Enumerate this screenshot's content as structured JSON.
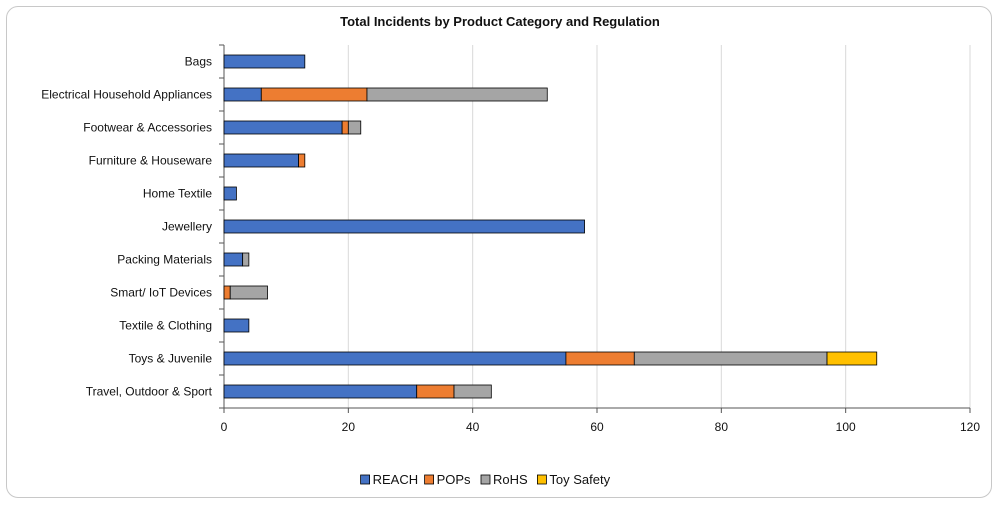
{
  "chart_data": {
    "type": "bar",
    "orientation": "horizontal",
    "stacked": true,
    "title": "Total Incidents by Product Category and Regulation",
    "xlabel": "",
    "ylabel": "",
    "xlim": [
      0,
      120
    ],
    "x_ticks": [
      "0",
      "20",
      "40",
      "60",
      "80",
      "100",
      "120"
    ],
    "grid": "vertical",
    "legend_position": "bottom",
    "categories": [
      "Bags",
      "Electrical Household Appliances",
      "Footwear & Accessories",
      "Furniture & Houseware",
      "Home Textile",
      "Jewellery",
      "Packing Materials",
      "Smart/ IoT Devices",
      "Textile & Clothing",
      "Toys & Juvenile",
      "Travel, Outdoor & Sport"
    ],
    "series": [
      {
        "name": "REACH",
        "color": "#4472c4",
        "values": [
          13,
          6,
          19,
          12,
          2,
          58,
          3,
          0,
          4,
          55,
          31
        ]
      },
      {
        "name": "POPs",
        "color": "#ed7d31",
        "values": [
          0,
          17,
          1,
          1,
          0,
          0,
          0,
          1,
          0,
          11,
          6
        ]
      },
      {
        "name": "RoHS",
        "color": "#a5a5a5",
        "values": [
          0,
          29,
          2,
          0,
          0,
          0,
          1,
          6,
          0,
          31,
          6
        ]
      },
      {
        "name": "Toy Safety",
        "color": "#ffc000",
        "values": [
          0,
          0,
          0,
          0,
          0,
          0,
          0,
          0,
          0,
          8,
          0
        ]
      }
    ]
  }
}
